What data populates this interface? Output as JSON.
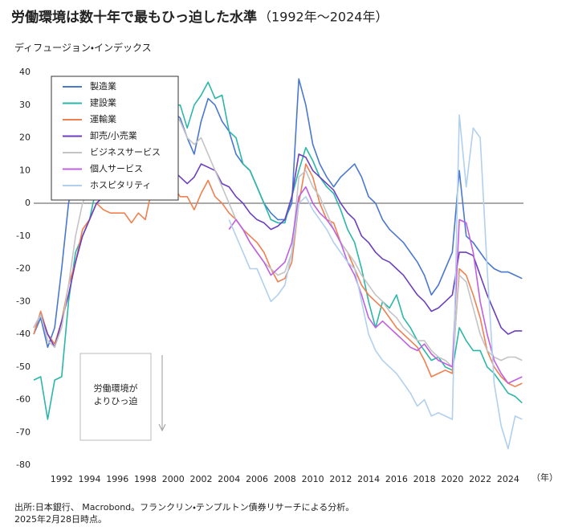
{
  "chart_data": {
    "type": "line",
    "title": "労働環境は数十年で最もひっ迫した水準",
    "subtitle": "（1992年～2024年）",
    "y_label": "ディフュージョン・インデックス",
    "x_label": "（年）",
    "annotation_lines": [
      "労働環境が",
      "よりひっ迫"
    ],
    "source_lines": [
      "出所:日本銀行、 Macrobond。フランクリン・テンプルトン債券リサーチによる分析。",
      "2025年2月28日時点。"
    ],
    "grid": false,
    "legend_position": "upper-left",
    "xlim": [
      1990,
      2025.1
    ],
    "xticks": [
      1992,
      1994,
      1996,
      1998,
      2000,
      2002,
      2004,
      2006,
      2008,
      2010,
      2012,
      2014,
      2016,
      2018,
      2020,
      2022,
      2024
    ],
    "ylim": [
      -80,
      40
    ],
    "yticks": [
      -80,
      -70,
      -60,
      -50,
      -40,
      -30,
      -20,
      -10,
      0,
      10,
      20,
      30,
      40
    ],
    "x": [
      1990,
      1990.5,
      1991,
      1991.5,
      1992,
      1992.5,
      1993,
      1993.5,
      1994,
      1994.5,
      1995,
      1995.5,
      1996,
      1996.5,
      1997,
      1997.5,
      1998,
      1998.5,
      1999,
      1999.5,
      2000,
      2000.5,
      2001,
      2001.5,
      2002,
      2002.5,
      2003,
      2003.5,
      2004,
      2004.5,
      2005,
      2005.5,
      2006,
      2006.5,
      2007,
      2007.5,
      2008,
      2008.5,
      2009,
      2009.5,
      2010,
      2010.5,
      2011,
      2011.5,
      2012,
      2012.5,
      2013,
      2013.5,
      2014,
      2014.5,
      2015,
      2015.5,
      2016,
      2016.5,
      2017,
      2017.5,
      2018,
      2018.5,
      2019,
      2019.5,
      2020,
      2020.5,
      2021,
      2021.5,
      2022,
      2022.5,
      2023,
      2023.5,
      2024,
      2024.5,
      2025
    ],
    "series": [
      {
        "name": "製造業",
        "color": "#4a78d0",
        "values": [
          -40,
          -35,
          -44,
          -38,
          -20,
          0,
          10,
          15,
          18,
          20,
          22,
          20,
          22,
          25,
          28,
          22,
          18,
          15,
          12,
          14,
          28,
          26,
          20,
          15,
          25,
          32,
          30,
          25,
          22,
          15,
          12,
          10,
          5,
          0,
          -3,
          -5,
          -5,
          0,
          38,
          30,
          18,
          12,
          8,
          5,
          8,
          10,
          12,
          8,
          2,
          0,
          -5,
          -8,
          -10,
          -12,
          -15,
          -18,
          -22,
          -28,
          -25,
          -20,
          -15,
          10,
          -10,
          -12,
          -15,
          -18,
          -20,
          -21,
          -21,
          -22,
          -23
        ]
      },
      {
        "name": "建設業",
        "color": "#2bb7a8",
        "values": [
          -54,
          -53,
          -66,
          -54,
          -53,
          -30,
          -15,
          -10,
          -5,
          5,
          10,
          15,
          18,
          22,
          25,
          20,
          15,
          12,
          15,
          20,
          30,
          30,
          23,
          30,
          33,
          37,
          32,
          33,
          22,
          20,
          12,
          10,
          5,
          0,
          -5,
          -6,
          -6,
          2,
          10,
          17,
          13,
          8,
          5,
          3,
          -2,
          -8,
          -12,
          -20,
          -30,
          -38,
          -30,
          -32,
          -28,
          -35,
          -38,
          -42,
          -45,
          -48,
          -47,
          -50,
          -51,
          -38,
          -42,
          -45,
          -45,
          -50,
          -52,
          -55,
          -58,
          -59,
          -61
        ]
      },
      {
        "name": "運輸業",
        "color": "#f08050",
        "values": [
          -40,
          -33,
          -40,
          -43,
          -36,
          -25,
          -18,
          -8,
          -5,
          0,
          -2,
          -3,
          -3,
          -3,
          -6,
          -3,
          -5,
          5,
          12,
          10,
          5,
          2,
          2,
          -2,
          3,
          7,
          2,
          0,
          -3,
          -5,
          -8,
          -10,
          -12,
          -15,
          -20,
          -24,
          -23,
          -18,
          0,
          12,
          8,
          0,
          -5,
          -6,
          -12,
          -15,
          -20,
          -25,
          -28,
          -30,
          -32,
          -35,
          -38,
          -40,
          -42,
          -44,
          -48,
          -53,
          -52,
          -51,
          -52,
          -20,
          -22,
          -28,
          -35,
          -45,
          -50,
          -53,
          -55,
          -56,
          -55
        ]
      },
      {
        "name": "卸売/小売業",
        "color": "#6b3fc0",
        "values": [
          -38,
          -34,
          -40,
          -44,
          -36,
          -28,
          -18,
          -10,
          -5,
          0,
          2,
          5,
          8,
          12,
          14,
          13,
          12,
          14,
          13,
          12,
          10,
          8,
          6,
          8,
          12,
          11,
          10,
          6,
          5,
          2,
          0,
          -3,
          -5,
          -6,
          -8,
          -7,
          -5,
          2,
          15,
          14,
          10,
          8,
          6,
          4,
          0,
          -3,
          -5,
          -10,
          -12,
          -15,
          -17,
          -18,
          -20,
          -22,
          -25,
          -28,
          -30,
          -33,
          -32,
          -30,
          -28,
          -15,
          -15,
          -16,
          -22,
          -28,
          -33,
          -38,
          -40,
          -39,
          -39
        ]
      },
      {
        "name": "ビジネスサービス",
        "color": "#c4c4c4",
        "values": [
          -38,
          -34,
          -42,
          -44,
          -38,
          -25,
          -10,
          0,
          5,
          10,
          15,
          12,
          15,
          20,
          22,
          25,
          30,
          33,
          35,
          32,
          28,
          25,
          20,
          18,
          20,
          15,
          10,
          5,
          0,
          -5,
          -8,
          -12,
          -15,
          -18,
          -20,
          -22,
          -21,
          -15,
          8,
          10,
          5,
          2,
          -3,
          -8,
          -12,
          -15,
          -18,
          -22,
          -25,
          -28,
          -30,
          -33,
          -35,
          -38,
          -40,
          -42,
          -42,
          -45,
          -47,
          -48,
          -50,
          -22,
          -24,
          -32,
          -40,
          -45,
          -47,
          -48,
          -47,
          -47,
          -48
        ]
      },
      {
        "name": "個人サービス",
        "color": "#c060e0",
        "values": [
          null,
          null,
          null,
          null,
          null,
          null,
          null,
          null,
          null,
          null,
          null,
          null,
          null,
          null,
          null,
          null,
          null,
          null,
          null,
          null,
          null,
          null,
          null,
          null,
          null,
          null,
          null,
          null,
          -8,
          -5,
          -8,
          -12,
          -15,
          -18,
          -22,
          -20,
          -18,
          -12,
          2,
          5,
          0,
          -3,
          -5,
          -8,
          -12,
          -18,
          -22,
          -28,
          -35,
          -38,
          -36,
          -38,
          -40,
          -42,
          -44,
          -45,
          -43,
          -46,
          -48,
          -49,
          -50,
          -5,
          -6,
          -15,
          -30,
          -40,
          -48,
          -52,
          -55,
          -54,
          -53
        ]
      },
      {
        "name": "ホスピタリティ",
        "color": "#b0d0ee",
        "values": [
          null,
          null,
          null,
          null,
          null,
          null,
          null,
          null,
          null,
          null,
          null,
          null,
          null,
          null,
          null,
          null,
          null,
          null,
          null,
          null,
          null,
          null,
          null,
          null,
          null,
          null,
          null,
          null,
          -5,
          -10,
          -15,
          -20,
          -20,
          -25,
          -30,
          -28,
          -25,
          -15,
          0,
          2,
          -2,
          -5,
          -8,
          -12,
          -15,
          -18,
          -20,
          -30,
          -40,
          -45,
          -48,
          -50,
          -52,
          -55,
          -58,
          -62,
          -60,
          -65,
          -64,
          -65,
          -66,
          27,
          5,
          23,
          20,
          -20,
          -55,
          -68,
          -75,
          -65,
          -66
        ]
      }
    ]
  }
}
